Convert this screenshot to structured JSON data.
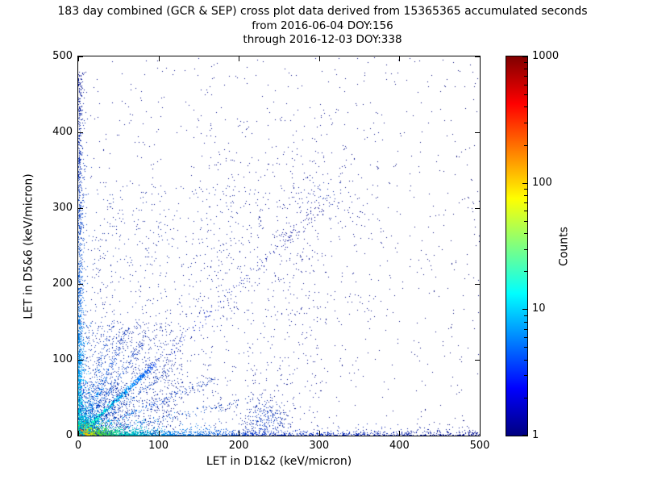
{
  "title": "183 day combined (GCR & SEP) cross plot data derived from 15365365 accumulated seconds",
  "subtitle1": "from 2016-06-04 DOY:156",
  "subtitle2": "through 2016-12-03 DOY:338",
  "chart_data": {
    "type": "scatter",
    "title": "183 day combined (GCR & SEP) cross plot data derived from 15365365 accumulated seconds",
    "xlabel": "LET in D1&2 (keV/micron)",
    "ylabel": "LET in D5&6 (keV/micron)",
    "xlim": [
      0,
      500
    ],
    "ylim": [
      0,
      500
    ],
    "xticks": [
      0,
      100,
      200,
      300,
      400,
      500
    ],
    "yticks": [
      0,
      100,
      200,
      300,
      400,
      500
    ],
    "grid": false,
    "colorbar": {
      "label": "Counts",
      "scale": "log",
      "ticks": [
        1,
        10,
        100,
        1000
      ],
      "range": [
        1,
        1000
      ],
      "colormap": "jet",
      "gradient": [
        [
          0,
          "#000080"
        ],
        [
          0.125,
          "#0000ff"
        ],
        [
          0.375,
          "#00ffff"
        ],
        [
          0.625,
          "#ffff00"
        ],
        [
          0.875,
          "#ff0000"
        ],
        [
          1,
          "#800000"
        ]
      ]
    },
    "seed": 7,
    "clusters": [
      {
        "kind": "gauss",
        "cx": 3,
        "cy": 3,
        "sx": 5,
        "sy": 5,
        "n": 2600,
        "fold": true,
        "caxis": "r",
        "stops": [
          [
            0,
            "#bb0000"
          ],
          [
            3,
            "#ee2200"
          ],
          [
            6,
            "#ff7700"
          ],
          [
            9,
            "#ffdd00"
          ],
          [
            13,
            "#88ee00"
          ],
          [
            18,
            "#00dd77"
          ],
          [
            26,
            "#00bbdd"
          ],
          [
            40,
            "#0055ee"
          ]
        ]
      },
      {
        "kind": "gauss",
        "cx": 10,
        "cy": 10,
        "sx": 14,
        "sy": 14,
        "n": 900,
        "fold": true,
        "caxis": "r",
        "stops": [
          [
            0,
            "#00cc88"
          ],
          [
            15,
            "#00aaee"
          ],
          [
            30,
            "#0066ee"
          ],
          [
            55,
            "#0022cc"
          ]
        ]
      },
      {
        "kind": "ray",
        "slope": 1,
        "minLen": 0,
        "len": 95,
        "pow": 1.3,
        "jitter": 1.6,
        "n": 800,
        "stops": [
          [
            0,
            "#aaffbb"
          ],
          [
            20,
            "#00ffcc"
          ],
          [
            45,
            "#00ccff"
          ],
          [
            70,
            "#0088ff"
          ],
          [
            95,
            "#2255ee"
          ]
        ]
      },
      {
        "kind": "ray",
        "slope": 1,
        "minLen": 90,
        "len": 310,
        "pow": 1,
        "jitter": 4,
        "n": 170,
        "stops": [
          [
            90,
            "#2244dd"
          ],
          [
            310,
            "#000088"
          ]
        ]
      },
      {
        "kind": "ray",
        "slope": 2.3,
        "minLen": 0,
        "len": 62,
        "pow": 1.2,
        "jitter": 2.2,
        "n": 260,
        "stops": [
          [
            0,
            "#00ddcc"
          ],
          [
            18,
            "#0099ff"
          ],
          [
            40,
            "#1155dd"
          ],
          [
            62,
            "#0e2fb0"
          ]
        ]
      },
      {
        "kind": "ray",
        "slope": 1.55,
        "minLen": 0,
        "len": 80,
        "pow": 1.2,
        "jitter": 2.2,
        "n": 200,
        "stops": [
          [
            0,
            "#00ccdd"
          ],
          [
            30,
            "#0f66e0"
          ],
          [
            80,
            "#1133bb"
          ]
        ]
      },
      {
        "kind": "ray",
        "slope": 0.45,
        "minLen": 0,
        "len": 170,
        "pow": 1.3,
        "jitter": 2.5,
        "n": 260,
        "stops": [
          [
            0,
            "#00ddbb"
          ],
          [
            35,
            "#00aaff"
          ],
          [
            90,
            "#1155dd"
          ],
          [
            170,
            "#0f2fa8"
          ]
        ]
      },
      {
        "kind": "ray",
        "slope": 0.22,
        "minLen": 0,
        "len": 230,
        "pow": 1.4,
        "jitter": 2.6,
        "n": 200,
        "stops": [
          [
            0,
            "#22ccbb"
          ],
          [
            60,
            "#1177ee"
          ],
          [
            230,
            "#0c27a0"
          ]
        ]
      },
      {
        "kind": "ray",
        "slope": 3.6,
        "minLen": 0,
        "len": 42,
        "pow": 1.2,
        "jitter": 2,
        "n": 150,
        "stops": [
          [
            0,
            "#00cccc"
          ],
          [
            20,
            "#1166dd"
          ],
          [
            42,
            "#1133bb"
          ]
        ]
      },
      {
        "kind": "ray",
        "slope": 0.75,
        "minLen": 0,
        "len": 120,
        "pow": 1.3,
        "jitter": 3,
        "n": 170,
        "stops": [
          [
            0,
            "#00bbcc"
          ],
          [
            40,
            "#1166dd"
          ],
          [
            120,
            "#0e2da8"
          ]
        ]
      },
      {
        "kind": "bandx",
        "max": 500,
        "mix": 0.62,
        "scale": 60,
        "thick": 3.4,
        "n": 2600,
        "stops": [
          [
            0,
            "#ff6600"
          ],
          [
            6,
            "#ffaa00"
          ],
          [
            14,
            "#d8e800"
          ],
          [
            26,
            "#55dd33"
          ],
          [
            55,
            "#00ccbb"
          ],
          [
            110,
            "#0088ee"
          ],
          [
            220,
            "#0d3ad0"
          ],
          [
            500,
            "#000d8f"
          ]
        ]
      },
      {
        "kind": "bandy",
        "max": 480,
        "mix": 0.55,
        "scale": 95,
        "thick": 2.6,
        "n": 1500,
        "stops": [
          [
            0,
            "#00ee99"
          ],
          [
            25,
            "#00ccdd"
          ],
          [
            80,
            "#00aaff"
          ],
          [
            180,
            "#0d66e0"
          ],
          [
            330,
            "#0d3ac0"
          ],
          [
            480,
            "#000d8f"
          ]
        ]
      },
      {
        "kind": "gauss",
        "cx": 233,
        "cy": 22,
        "sx": 17,
        "sy": 12,
        "n": 260,
        "caxis": "r",
        "stops": [
          [
            0,
            "#0d44cc"
          ],
          [
            20,
            "#0d2fae"
          ],
          [
            40,
            "#000d8f"
          ]
        ]
      },
      {
        "kind": "gauss",
        "cx": 308,
        "cy": 318,
        "sx": 27,
        "sy": 30,
        "n": 95,
        "caxis": "r",
        "stops": [
          [
            0,
            "#0d2fae"
          ],
          [
            40,
            "#000d8f"
          ]
        ]
      },
      {
        "kind": "rect",
        "x0": 0,
        "x1": 500,
        "y0": 0,
        "y1": 500,
        "n": 1000,
        "caxis": "x",
        "stops": [
          [
            0,
            "#000d8f"
          ],
          [
            500,
            "#000a78"
          ]
        ]
      },
      {
        "kind": "rect",
        "x0": 0,
        "x1": 300,
        "y0": 0,
        "y1": 330,
        "n": 900,
        "caxis": "x",
        "stops": [
          [
            0,
            "#0c2aa0"
          ],
          [
            300,
            "#000d8f"
          ]
        ]
      },
      {
        "kind": "rect",
        "x0": 150,
        "x1": 380,
        "y0": 150,
        "y1": 430,
        "n": 240,
        "caxis": "x",
        "stops": [
          [
            150,
            "#000d8f"
          ],
          [
            380,
            "#000d8f"
          ]
        ]
      },
      {
        "kind": "rect",
        "x0": 0,
        "x1": 130,
        "y0": 0,
        "y1": 150,
        "n": 850,
        "caxis": "x",
        "stops": [
          [
            0,
            "#0d35b8"
          ],
          [
            130,
            "#0b1f98"
          ]
        ]
      },
      {
        "kind": "rect",
        "x0": 0,
        "x1": 60,
        "y0": 0,
        "y1": 70,
        "n": 500,
        "caxis": "x",
        "stops": [
          [
            0,
            "#0d49d6"
          ],
          [
            60,
            "#0c2aa4"
          ]
        ]
      }
    ]
  }
}
